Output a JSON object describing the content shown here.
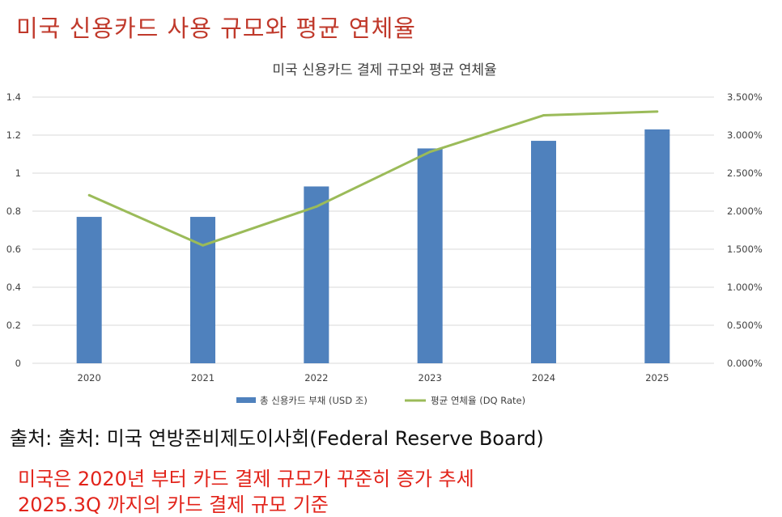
{
  "heading": "미국 신용카드 사용 규모와 평균 연체율",
  "source_text": "출처: 출처: 미국 연방준비제도이사회(Federal Reserve Board)",
  "notes": [
    "미국은 2020년 부터 카드 결제 규모가 꾸준히 증가 추세",
    "2025.3Q 까지의 카드 결제 규모 기준"
  ],
  "colors": {
    "bar": "#4f81bd",
    "line": "#9bbb59",
    "heading": "#c0392b",
    "note": "#e2231a",
    "grid": "#d9d9d9"
  },
  "chart_data": {
    "type": "bar",
    "title": "미국 신용카드 결제 규모와 평균 연체율",
    "categories": [
      "2020",
      "2021",
      "2022",
      "2023",
      "2024",
      "2025"
    ],
    "series": [
      {
        "name": "총 신용카드 부채 (USD 조)",
        "type": "bar",
        "axis": "left",
        "values": [
          0.77,
          0.77,
          0.93,
          1.13,
          1.17,
          1.23
        ]
      },
      {
        "name": "평균 연체율 (DQ Rate)",
        "type": "line",
        "axis": "right",
        "values": [
          0.0221,
          0.0155,
          0.0206,
          0.0278,
          0.0326,
          0.0331
        ]
      }
    ],
    "y_left": {
      "ylim": [
        0,
        1.4
      ],
      "ticks": [
        "0",
        "0.2",
        "0.4",
        "0.6",
        "0.8",
        "1",
        "1.2",
        "1.4"
      ]
    },
    "y_right": {
      "ylim": [
        0,
        0.035
      ],
      "ticks": [
        "0.000%",
        "0.500%",
        "1.000%",
        "1.500%",
        "2.000%",
        "2.500%",
        "3.000%",
        "3.500%"
      ]
    },
    "grid": true,
    "legend_position": "bottom"
  }
}
